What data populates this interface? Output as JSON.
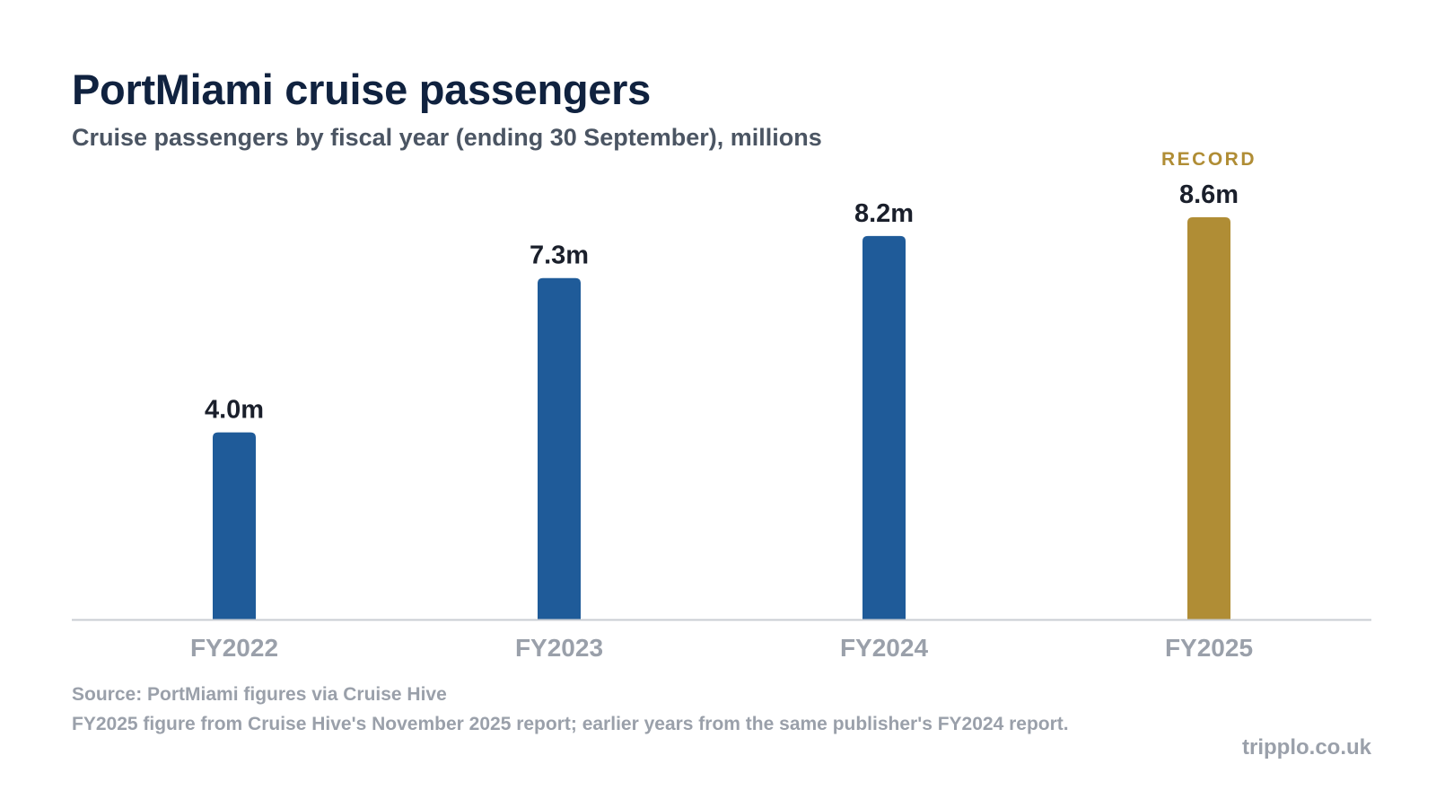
{
  "chart_data": {
    "type": "bar",
    "title": "PortMiami cruise passengers",
    "subtitle": "Cruise passengers by fiscal year (ending 30 September), millions",
    "categories": [
      "FY2022",
      "FY2023",
      "FY2024",
      "FY2025"
    ],
    "values": [
      4.0,
      7.3,
      8.2,
      8.6
    ],
    "value_labels": [
      "4.0m",
      "7.3m",
      "8.2m",
      "8.6m"
    ],
    "ylim": [
      0,
      8.6
    ],
    "grid": false,
    "legend": "none",
    "highlight": {
      "category": "FY2025",
      "label": "RECORD",
      "color": "#b08d35"
    },
    "colors": {
      "bar": "#1f5b99",
      "highlight": "#b08d35",
      "baseline": "#c9cdd3"
    }
  },
  "footer": {
    "source": "Source: PortMiami figures via Cruise Hive",
    "note": "FY2025 figure from Cruise Hive's November 2025 report; earlier years from the same publisher's FY2024 report.",
    "brand": "tripplo.co.uk"
  }
}
